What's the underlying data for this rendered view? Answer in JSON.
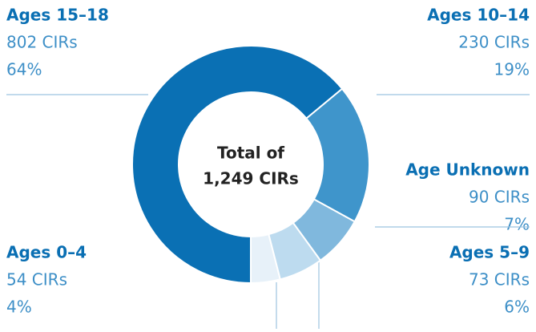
{
  "chart_data": {
    "type": "donut",
    "center_label": [
      "Total of",
      "1,249 CIRs"
    ],
    "categories": [
      "Ages 15–18",
      "Ages 10–14",
      "Age Unknown",
      "Ages 5–9",
      "Ages 0–4"
    ],
    "count_labels": [
      "802 CIRs",
      "230 CIRs",
      "90 CIRs",
      "73 CIRs",
      "54 CIRs"
    ],
    "values": [
      64,
      19,
      7,
      6,
      4
    ],
    "value_labels": [
      "64%",
      "19%",
      "7%",
      "6%",
      "4%"
    ],
    "colors": [
      "#0a70b4",
      "#3f95cb",
      "#80b8dd",
      "#bddbef",
      "#e7f1f9"
    ]
  }
}
